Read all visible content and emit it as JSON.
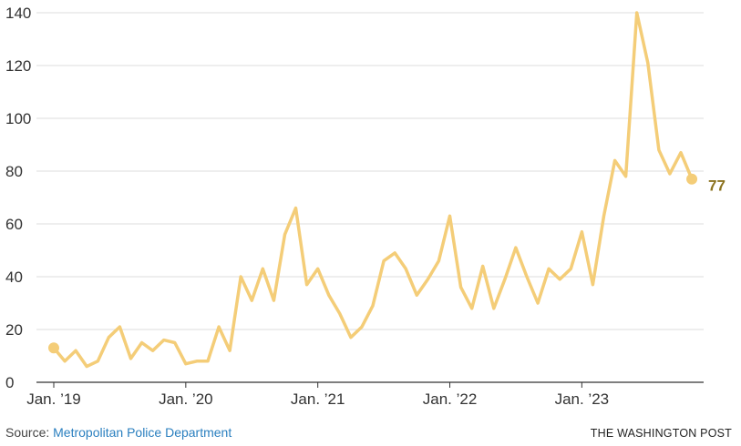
{
  "chart_data": {
    "type": "line",
    "series_color": "#f4cd78",
    "end_label_color": "#8c7320",
    "end_label": "77",
    "ylim": [
      0,
      140
    ],
    "yticks": [
      0,
      20,
      40,
      60,
      80,
      100,
      120,
      140
    ],
    "xticks": [
      {
        "index": 0,
        "label": "Jan. ’19"
      },
      {
        "index": 12,
        "label": "Jan. ’20"
      },
      {
        "index": 24,
        "label": "Jan. ’21"
      },
      {
        "index": 36,
        "label": "Jan. ’22"
      },
      {
        "index": 48,
        "label": "Jan. ’23"
      }
    ],
    "start_month": "Jan. 2019",
    "values": [
      13,
      8,
      12,
      6,
      8,
      17,
      21,
      9,
      15,
      12,
      16,
      15,
      7,
      8,
      8,
      21,
      12,
      40,
      31,
      43,
      31,
      56,
      66,
      37,
      43,
      33,
      26,
      17,
      21,
      29,
      46,
      49,
      43,
      33,
      39,
      46,
      63,
      36,
      28,
      44,
      28,
      39,
      51,
      40,
      30,
      43,
      39,
      43,
      57,
      37,
      63,
      84,
      78,
      140,
      121,
      88,
      79,
      87,
      77
    ]
  },
  "footer": {
    "source_prefix": "Source: ",
    "source_name": "Metropolitan Police Department",
    "credit": "The Washington Post"
  }
}
